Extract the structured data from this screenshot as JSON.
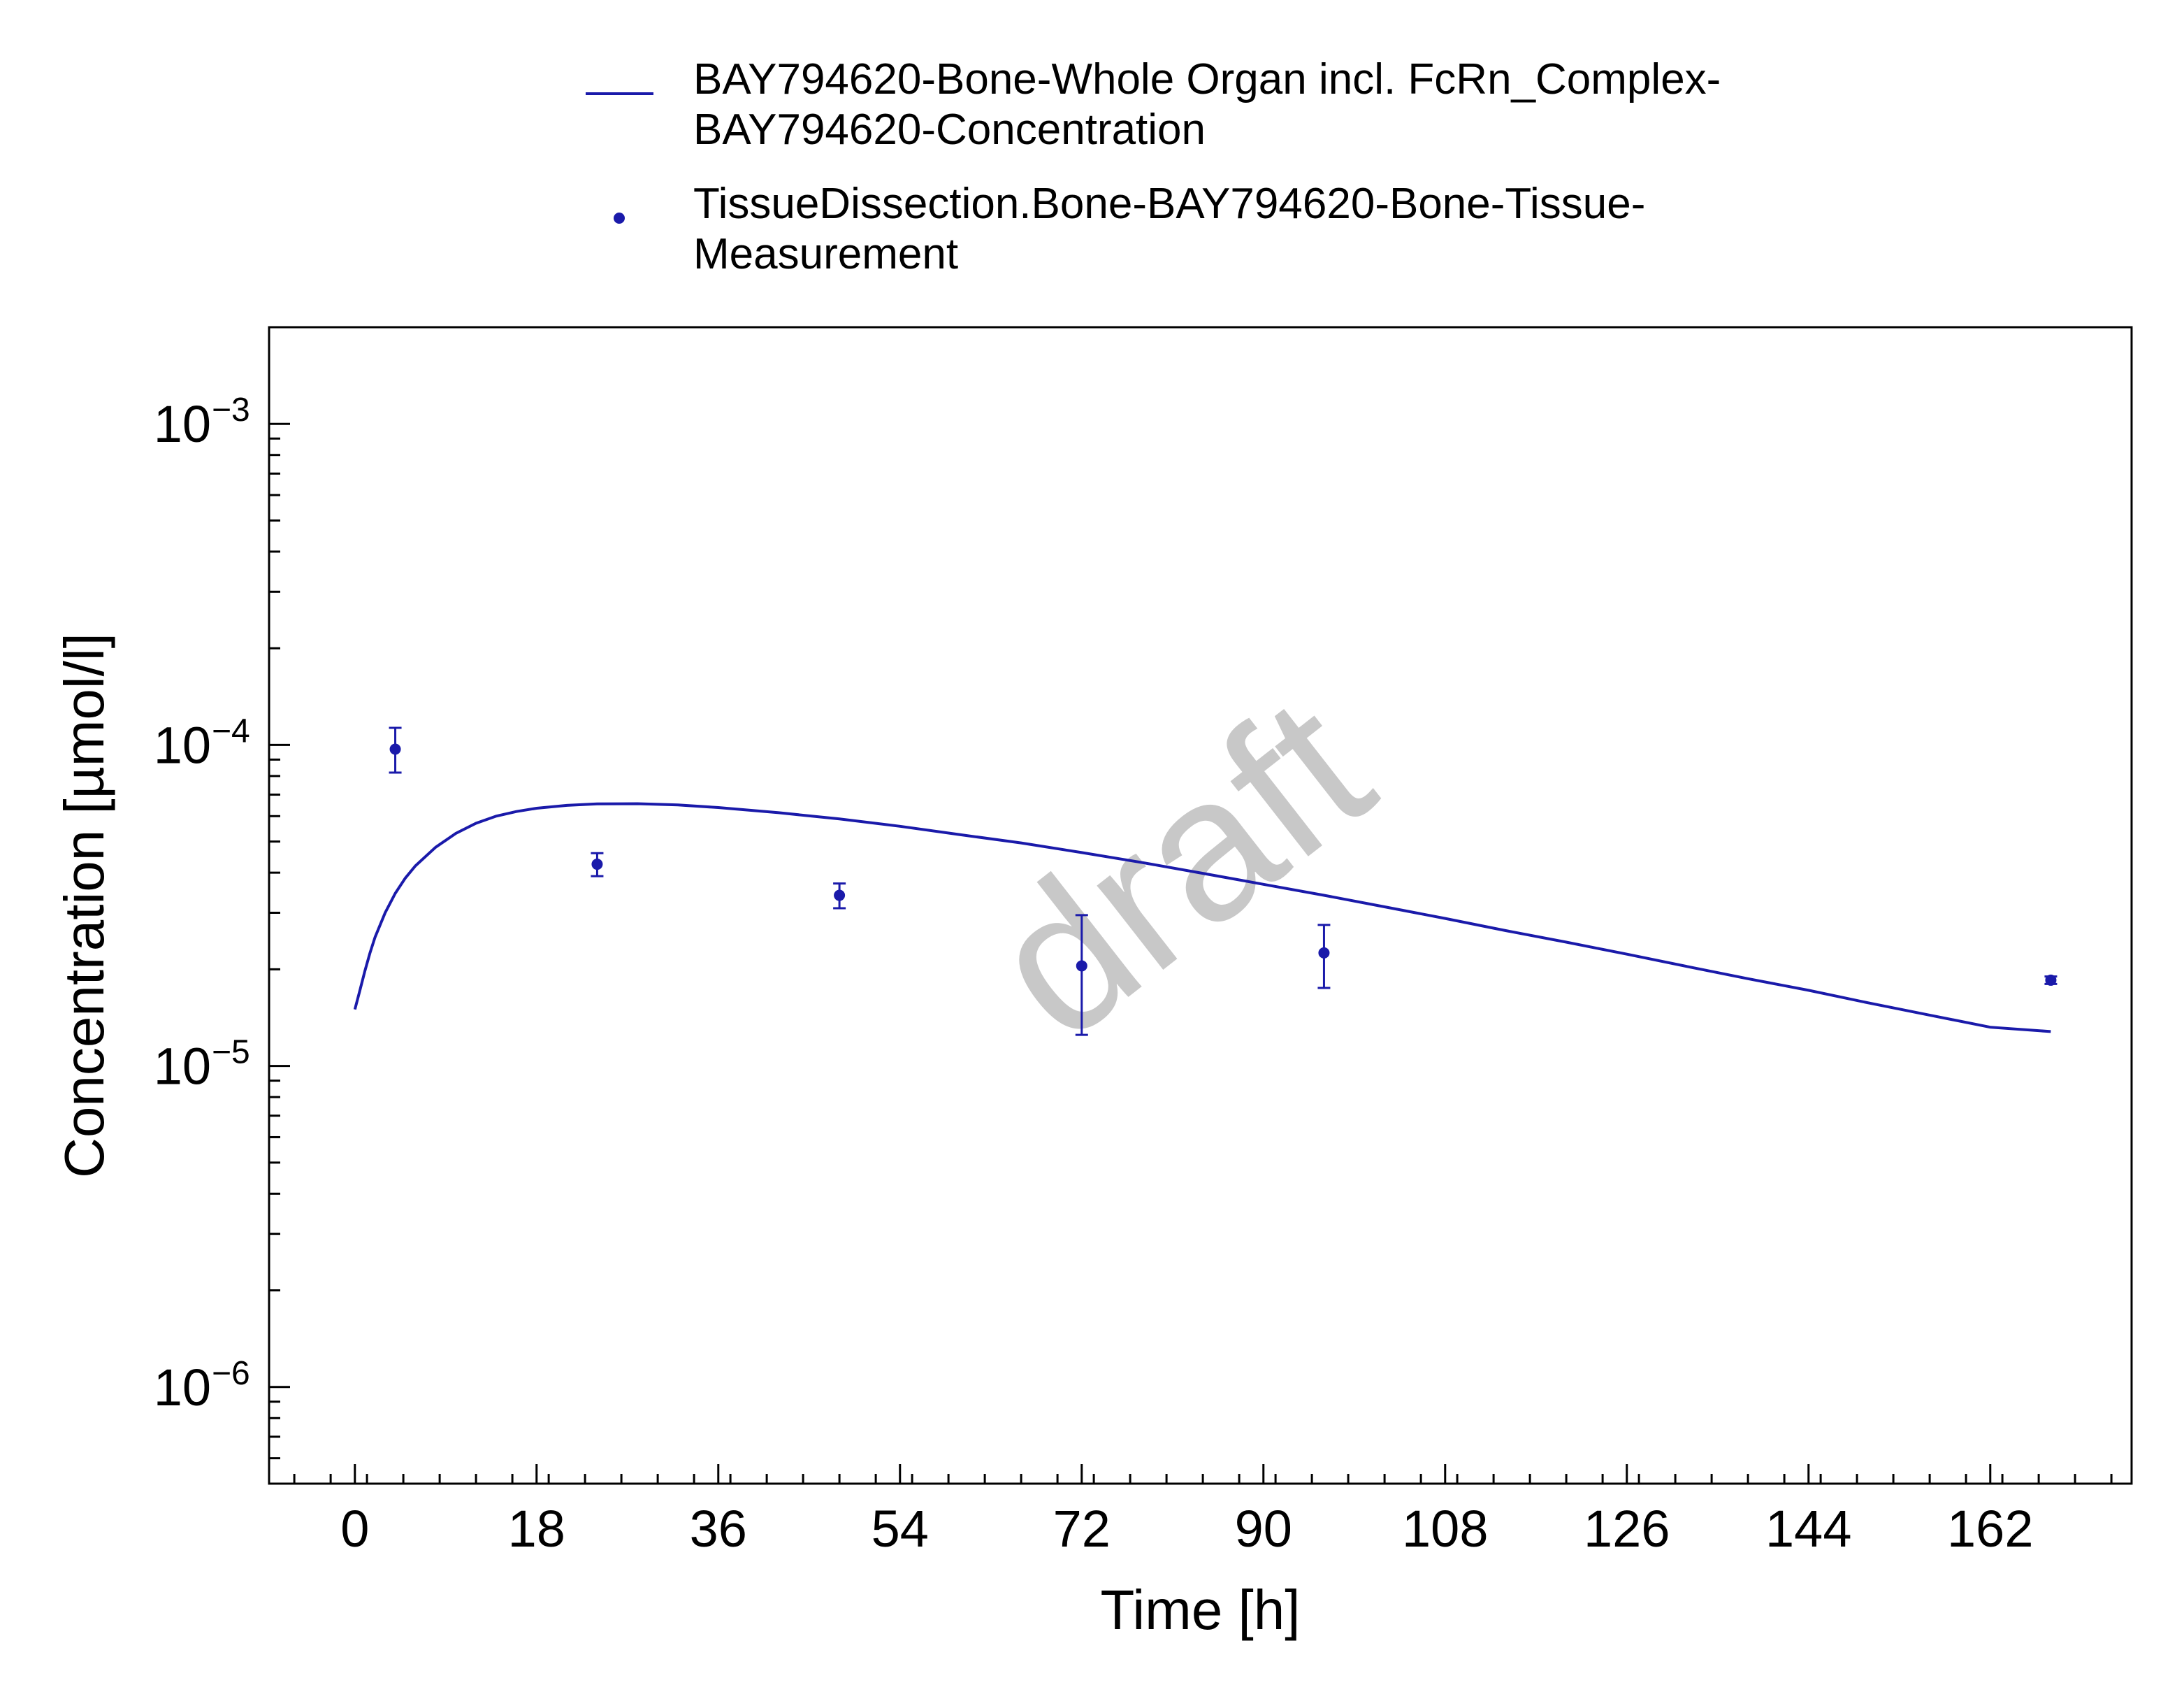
{
  "chart_data": {
    "type": "line",
    "xlabel": "Time [h]",
    "ylabel": "Concentration [µmol/l]",
    "xlim": [
      -8.5,
      176
    ],
    "ylim": [
      5e-07,
      0.002
    ],
    "y_scale": "log",
    "x_ticks": [
      0,
      18,
      36,
      54,
      72,
      90,
      108,
      126,
      144,
      162
    ],
    "y_ticks": [
      {
        "value": 1e-06,
        "base": "10",
        "exp": "−6"
      },
      {
        "value": 1e-05,
        "base": "10",
        "exp": "−5"
      },
      {
        "value": 0.0001,
        "base": "10",
        "exp": "−4"
      },
      {
        "value": 0.001,
        "base": "10",
        "exp": "−3"
      }
    ],
    "grid": false,
    "legend": {
      "position": "top-center",
      "entries": [
        {
          "lines": [
            "BAY794620-Bone-Whole Organ incl. FcRn_Complex-",
            "BAY794620-Concentration"
          ],
          "marker": "line"
        },
        {
          "lines": [
            "TissueDissection.Bone-BAY794620-Bone-Tissue-",
            "Measurement"
          ],
          "marker": "point"
        }
      ]
    },
    "watermark": "draft",
    "series": [
      {
        "kind": "line",
        "color": "#1a1aaa",
        "x": [
          0,
          0.5,
          1,
          1.5,
          2,
          3,
          4,
          5,
          6,
          8,
          10,
          12,
          14,
          16,
          18,
          21,
          24,
          28,
          32,
          36,
          42,
          48,
          54,
          60,
          66,
          72,
          78,
          84,
          90,
          96,
          102,
          108,
          114,
          120,
          126,
          132,
          138,
          144,
          150,
          156,
          162,
          168
        ],
        "y": [
          1.5e-05,
          1.72e-05,
          1.98e-05,
          2.25e-05,
          2.52e-05,
          3e-05,
          3.45e-05,
          3.85e-05,
          4.2e-05,
          4.8e-05,
          5.3e-05,
          5.7e-05,
          6e-05,
          6.2e-05,
          6.35e-05,
          6.48e-05,
          6.55e-05,
          6.56e-05,
          6.5e-05,
          6.38e-05,
          6.15e-05,
          5.88e-05,
          5.58e-05,
          5.25e-05,
          4.95e-05,
          4.62e-05,
          4.3e-05,
          3.98e-05,
          3.68e-05,
          3.4e-05,
          3.13e-05,
          2.88e-05,
          2.64e-05,
          2.43e-05,
          2.23e-05,
          2.04e-05,
          1.87e-05,
          1.72e-05,
          1.57e-05,
          1.44e-05,
          1.32e-05,
          1.28e-05
        ]
      },
      {
        "kind": "scatter",
        "color": "#1a1aaa",
        "points": [
          {
            "x": 4,
            "y": 9.7e-05,
            "ylow": 8.2e-05,
            "yhigh": 0.000113
          },
          {
            "x": 24,
            "y": 4.25e-05,
            "ylow": 3.9e-05,
            "yhigh": 4.6e-05
          },
          {
            "x": 48,
            "y": 3.4e-05,
            "ylow": 3.1e-05,
            "yhigh": 3.7e-05
          },
          {
            "x": 72,
            "y": 2.05e-05,
            "ylow": 1.25e-05,
            "yhigh": 2.95e-05
          },
          {
            "x": 96,
            "y": 2.25e-05,
            "ylow": 1.75e-05,
            "yhigh": 2.75e-05
          },
          {
            "x": 168,
            "y": 1.85e-05,
            "ylow": 1.8e-05,
            "yhigh": 1.9e-05
          }
        ]
      }
    ]
  }
}
